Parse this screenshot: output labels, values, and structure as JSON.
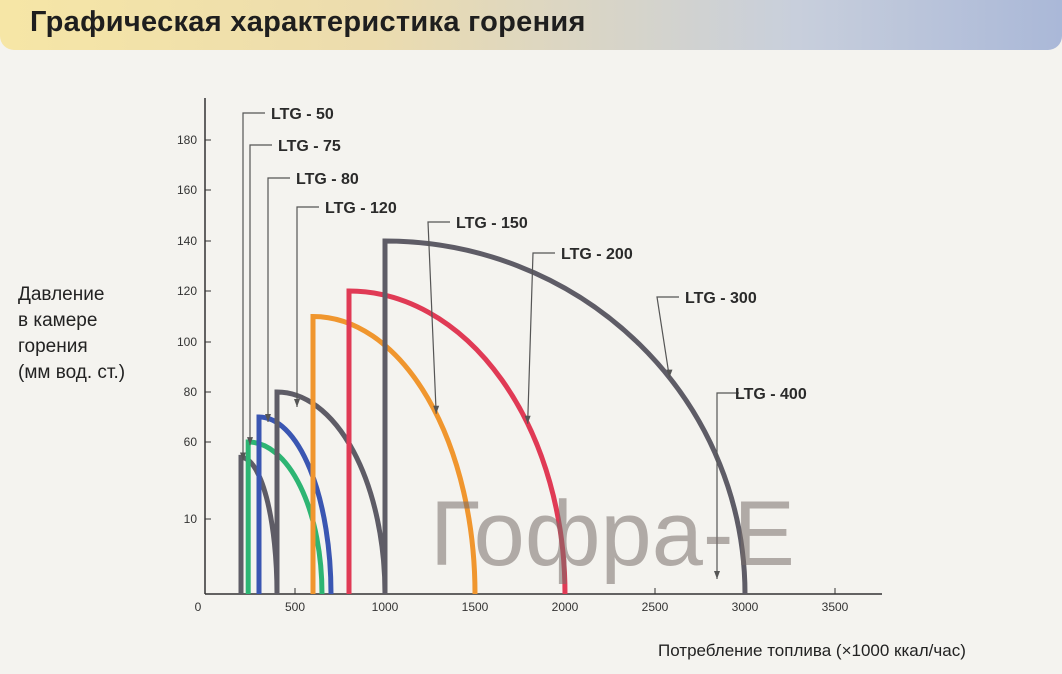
{
  "header": {
    "title": "Графическая характеристика горения"
  },
  "watermark": "Гофра-Е",
  "chart_data": {
    "type": "line",
    "title": "Графическая характеристика горения",
    "ylabel_lines": [
      "Давление",
      "в камере",
      "горения",
      "(мм вод. ст.)"
    ],
    "xlabel": "Потребление топлива (×1000 ккал/час)",
    "x_ticks": [
      "0",
      "500",
      "1000",
      "1500",
      "2000",
      "2500",
      "3000",
      "3500"
    ],
    "y_ticks": [
      "10",
      "60",
      "80",
      "100",
      "120",
      "140",
      "160",
      "180"
    ],
    "xlim": [
      0,
      3700
    ],
    "grid": false,
    "colors": {
      "gray": "#5e5c66",
      "green": "#2db573",
      "blue": "#3a56b2",
      "orange": "#f0962e",
      "red": "#e03a55"
    },
    "series": [
      {
        "name": "LTG - 50",
        "color": "#5e5c66",
        "x_min": 200,
        "x_max": 400,
        "y_max": 50
      },
      {
        "name": "LTG - 75",
        "color": "#2db573",
        "x_min": 240,
        "x_max": 650,
        "y_max": 60
      },
      {
        "name": "LTG - 80",
        "color": "#3a56b2",
        "x_min": 300,
        "x_max": 700,
        "y_max": 70
      },
      {
        "name": "LTG - 120",
        "color": "#5e5c66",
        "x_min": 400,
        "x_max": 1000,
        "y_max": 80
      },
      {
        "name": "LTG - 150",
        "color": "#f0962e",
        "x_min": 600,
        "x_max": 1500,
        "y_max": 110
      },
      {
        "name": "LTG - 200",
        "color": "#e03a55",
        "x_min": 800,
        "x_max": 2000,
        "y_max": 120
      },
      {
        "name": "LTG - 300",
        "color": "#5e5c66",
        "x_min": 1000,
        "x_max": 3000,
        "y_max": 140
      }
    ],
    "extra_labels": [
      "LTG - 400"
    ]
  }
}
